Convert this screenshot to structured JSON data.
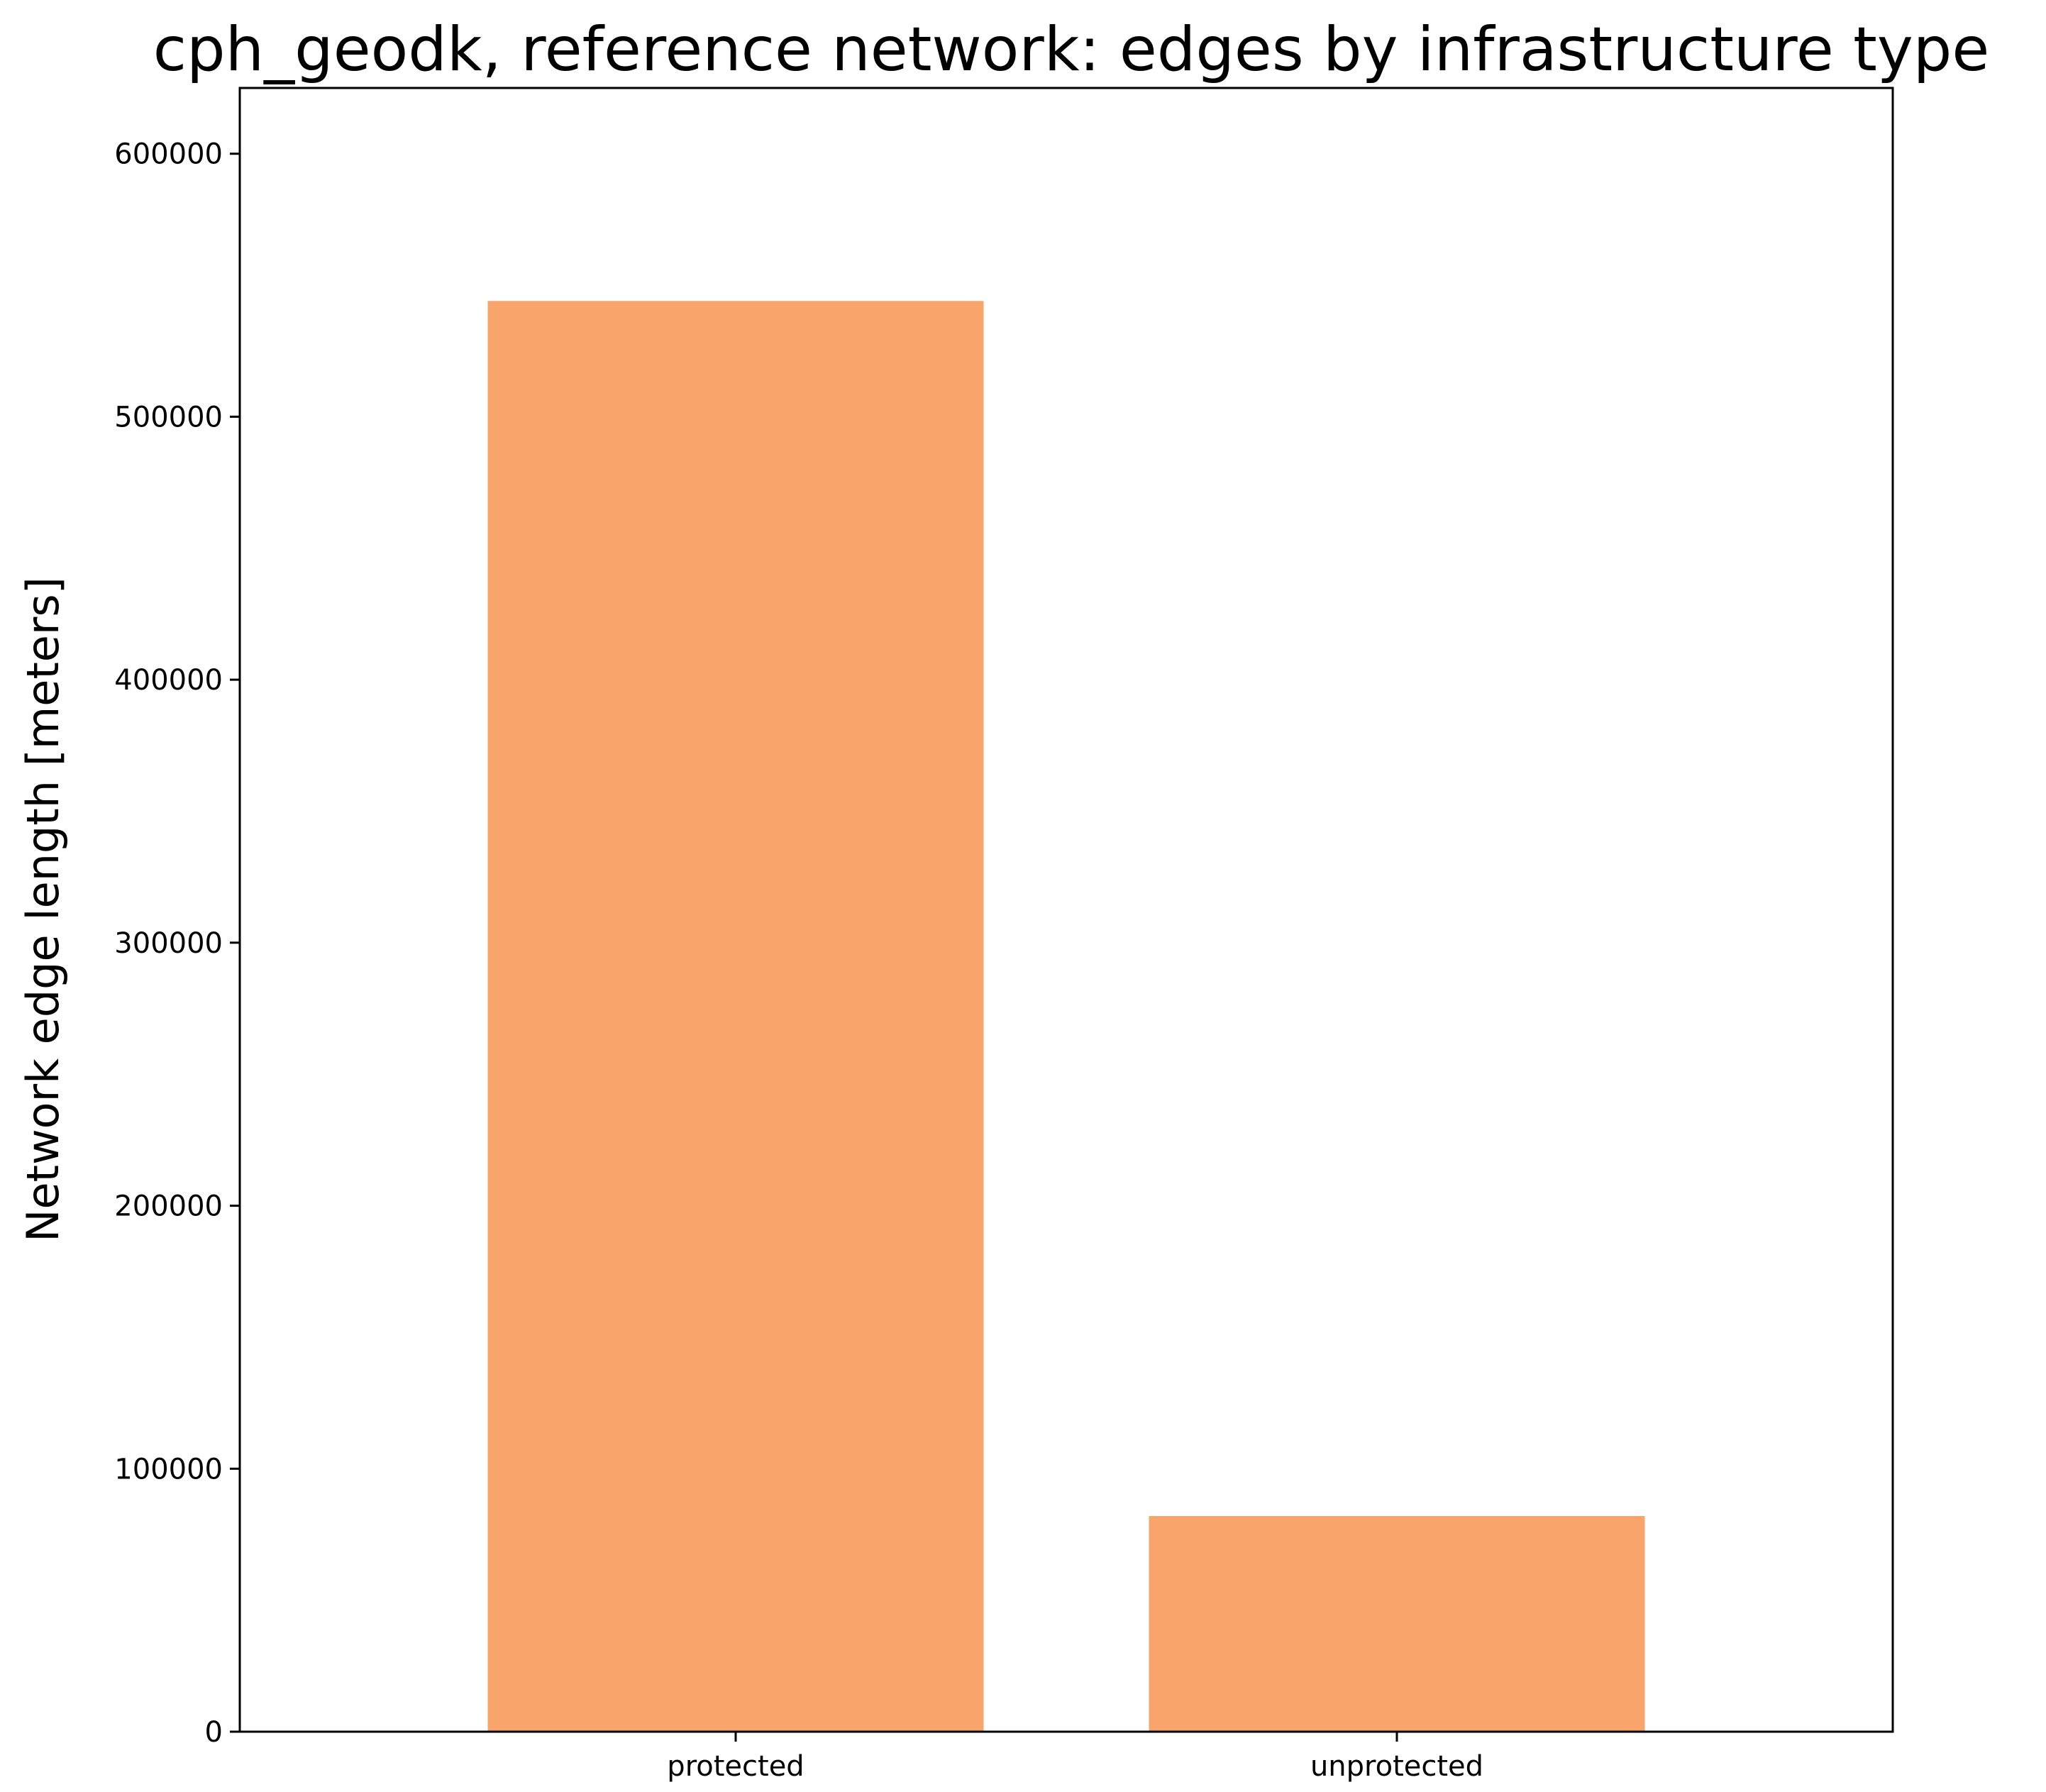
{
  "chart_data": {
    "type": "bar",
    "title": "cph_geodk, reference network: edges by infrastructure type",
    "xlabel": "",
    "ylabel": "Network edge length [meters]",
    "categories": [
      "protected",
      "unprotected"
    ],
    "values": [
      544000,
      82000
    ],
    "ylim": [
      0,
      625000
    ],
    "yticks": [
      0,
      100000,
      200000,
      300000,
      400000,
      500000,
      600000
    ],
    "ytick_labels": [
      "0",
      "100000",
      "200000",
      "300000",
      "400000",
      "500000",
      "600000"
    ],
    "bar_color": "#f8a46b",
    "grid": false,
    "legend": "none"
  }
}
